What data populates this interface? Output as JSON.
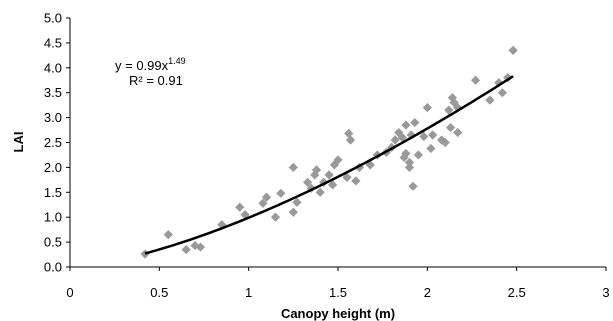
{
  "chart_data": {
    "type": "scatter",
    "xlabel": "Canopy height (m)",
    "ylabel": "LAI",
    "xlim": [
      0,
      3
    ],
    "ylim": [
      0,
      5
    ],
    "x_ticks": [
      "0",
      "0.5",
      "1",
      "1.5",
      "2",
      "2.5",
      "3"
    ],
    "y_ticks": [
      "0.0",
      "0.5",
      "1.0",
      "1.5",
      "2.0",
      "2.5",
      "3.0",
      "3.5",
      "4.0",
      "4.5",
      "5.0"
    ],
    "grid": false,
    "marker_color": "#999999",
    "fit_color": "#000000",
    "annotation": {
      "equation_base": "y = 0.99x",
      "equation_exponent": "1.49",
      "r_squared": "R² = 0.91"
    },
    "fit": {
      "a": 0.99,
      "b": 1.49,
      "x_range": [
        0.42,
        2.48
      ]
    },
    "points": [
      [
        0.42,
        0.26
      ],
      [
        0.55,
        0.65
      ],
      [
        0.65,
        0.35
      ],
      [
        0.7,
        0.43
      ],
      [
        0.73,
        0.4
      ],
      [
        0.85,
        0.85
      ],
      [
        0.95,
        1.2
      ],
      [
        0.98,
        1.05
      ],
      [
        1.08,
        1.28
      ],
      [
        1.1,
        1.4
      ],
      [
        1.15,
        1.0
      ],
      [
        1.18,
        1.48
      ],
      [
        1.25,
        2.0
      ],
      [
        1.25,
        1.1
      ],
      [
        1.27,
        1.3
      ],
      [
        1.33,
        1.7
      ],
      [
        1.35,
        1.58
      ],
      [
        1.37,
        1.85
      ],
      [
        1.38,
        1.95
      ],
      [
        1.4,
        1.5
      ],
      [
        1.42,
        1.7
      ],
      [
        1.45,
        1.85
      ],
      [
        1.47,
        1.65
      ],
      [
        1.48,
        2.05
      ],
      [
        1.5,
        2.15
      ],
      [
        1.55,
        1.8
      ],
      [
        1.56,
        2.68
      ],
      [
        1.57,
        2.55
      ],
      [
        1.6,
        1.73
      ],
      [
        1.62,
        2.0
      ],
      [
        1.68,
        2.05
      ],
      [
        1.72,
        2.25
      ],
      [
        1.77,
        2.3
      ],
      [
        1.8,
        2.4
      ],
      [
        1.82,
        2.55
      ],
      [
        1.84,
        2.7
      ],
      [
        1.86,
        2.6
      ],
      [
        1.87,
        2.2
      ],
      [
        1.88,
        2.28
      ],
      [
        1.88,
        2.85
      ],
      [
        1.9,
        2.1
      ],
      [
        1.9,
        2.0
      ],
      [
        1.91,
        2.65
      ],
      [
        1.92,
        1.62
      ],
      [
        1.93,
        2.9
      ],
      [
        1.95,
        2.25
      ],
      [
        1.98,
        2.62
      ],
      [
        2.0,
        3.2
      ],
      [
        2.02,
        2.38
      ],
      [
        2.03,
        2.65
      ],
      [
        2.08,
        2.55
      ],
      [
        2.1,
        2.5
      ],
      [
        2.12,
        3.15
      ],
      [
        2.13,
        2.8
      ],
      [
        2.14,
        3.4
      ],
      [
        2.15,
        3.3
      ],
      [
        2.17,
        2.7
      ],
      [
        2.17,
        3.2
      ],
      [
        2.27,
        3.75
      ],
      [
        2.35,
        3.35
      ],
      [
        2.4,
        3.7
      ],
      [
        2.42,
        3.5
      ],
      [
        2.45,
        3.8
      ],
      [
        2.48,
        4.35
      ]
    ]
  }
}
